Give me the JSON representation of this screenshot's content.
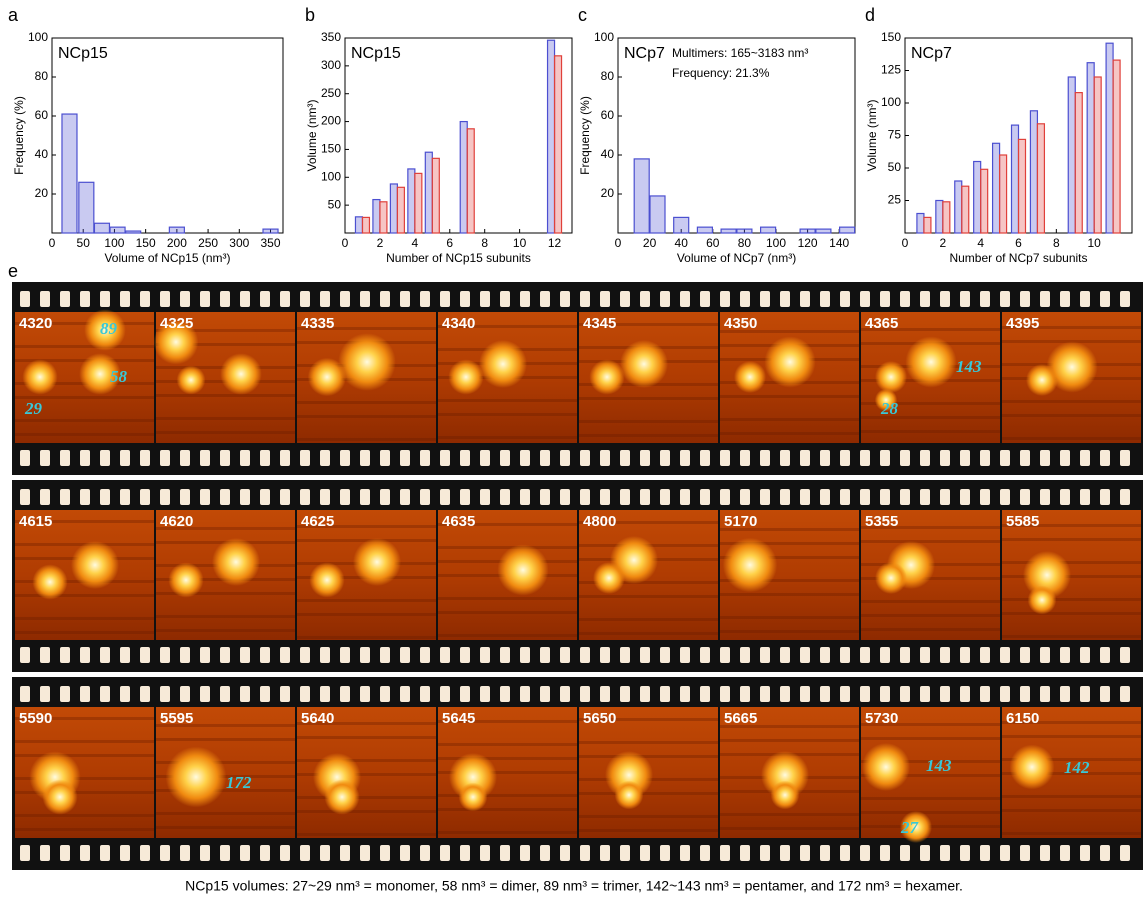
{
  "chart_data": [
    {
      "type": "bar",
      "panel": "a",
      "title": "NCp15",
      "x_label": "Volume of NCp15 (nm³)",
      "y_label": "Frequency (%)",
      "x": [
        28,
        55,
        80,
        105,
        130,
        200,
        350
      ],
      "values": [
        61,
        26,
        5,
        3,
        1,
        3,
        2
      ],
      "color": "#4b4fd0",
      "xlim": [
        0,
        370
      ],
      "xticks": [
        0,
        50,
        100,
        150,
        200,
        250,
        300,
        350
      ],
      "ylim": [
        0,
        100
      ],
      "yticks": [
        20,
        40,
        60,
        80,
        100
      ]
    },
    {
      "type": "grouped_bar",
      "panel": "b",
      "title": "NCp15",
      "x_label": "Number of NCp15 subunits",
      "y_label": "Volume (nm³)",
      "x": [
        1,
        2,
        3,
        4,
        5,
        7,
        12
      ],
      "series": [
        {
          "color": "#4b4fd0",
          "values": [
            29,
            60,
            88,
            115,
            145,
            200,
            346
          ]
        },
        {
          "color": "#e0403a",
          "values": [
            28,
            56,
            82,
            107,
            134,
            187,
            318
          ]
        }
      ],
      "xlim": [
        0,
        13
      ],
      "xticks": [
        0,
        2,
        4,
        6,
        8,
        10,
        12
      ],
      "ylim": [
        0,
        350
      ],
      "yticks": [
        50,
        100,
        150,
        200,
        250,
        300,
        350
      ]
    },
    {
      "type": "bar",
      "panel": "c",
      "title": "NCp7",
      "x_label": "Volume of NCp7 (nm³)",
      "y_label": "Frequency (%)",
      "annotations": [
        "Multimers: 165~3183 nm³",
        "Frequency: 21.3%"
      ],
      "x": [
        15,
        25,
        40,
        55,
        70,
        80,
        95,
        120,
        130,
        145
      ],
      "values": [
        38,
        19,
        8,
        3,
        2,
        2,
        3,
        2,
        2,
        3
      ],
      "color": "#4b4fd0",
      "xlim": [
        0,
        150
      ],
      "xticks": [
        0,
        20,
        40,
        60,
        80,
        100,
        120,
        140
      ],
      "ylim": [
        0,
        100
      ],
      "yticks": [
        20,
        40,
        60,
        80,
        100
      ]
    },
    {
      "type": "grouped_bar",
      "panel": "d",
      "title": "NCp7",
      "x_label": "Number of NCp7 subunits",
      "y_label": "Volume (nm³)",
      "x": [
        1,
        2,
        3,
        4,
        5,
        6,
        7,
        9,
        10,
        11
      ],
      "series": [
        {
          "color": "#4b4fd0",
          "values": [
            15,
            25,
            40,
            55,
            69,
            83,
            94,
            120,
            131,
            146
          ]
        },
        {
          "color": "#e0403a",
          "values": [
            12,
            24,
            36,
            49,
            60,
            72,
            84,
            108,
            120,
            133
          ]
        }
      ],
      "xlim": [
        0,
        12
      ],
      "xticks": [
        0,
        2,
        4,
        6,
        8,
        10
      ],
      "ylim": [
        0,
        150
      ],
      "yticks": [
        25,
        50,
        75,
        100,
        125,
        150
      ]
    }
  ],
  "panel_e": {
    "label": "e",
    "strips": [
      [
        {
          "label": "4320",
          "annotations": [
            "89",
            "58",
            "29"
          ]
        },
        {
          "label": "4325",
          "annotations": []
        },
        {
          "label": "4335",
          "annotations": []
        },
        {
          "label": "4340",
          "annotations": []
        },
        {
          "label": "4345",
          "annotations": []
        },
        {
          "label": "4350",
          "annotations": []
        },
        {
          "label": "4365",
          "annotations": [
            "143",
            "28"
          ]
        },
        {
          "label": "4395",
          "annotations": []
        }
      ],
      [
        {
          "label": "4615",
          "annotations": []
        },
        {
          "label": "4620",
          "annotations": []
        },
        {
          "label": "4625",
          "annotations": []
        },
        {
          "label": "4635",
          "annotations": []
        },
        {
          "label": "4800",
          "annotations": []
        },
        {
          "label": "5170",
          "annotations": []
        },
        {
          "label": "5355",
          "annotations": []
        },
        {
          "label": "5585",
          "annotations": []
        }
      ],
      [
        {
          "label": "5590",
          "annotations": []
        },
        {
          "label": "5595",
          "annotations": [
            "172"
          ]
        },
        {
          "label": "5640",
          "annotations": []
        },
        {
          "label": "5645",
          "annotations": []
        },
        {
          "label": "5650",
          "annotations": []
        },
        {
          "label": "5665",
          "annotations": []
        },
        {
          "label": "5730",
          "annotations": [
            "143",
            "27"
          ]
        },
        {
          "label": "6150",
          "annotations": [
            "142"
          ]
        }
      ]
    ]
  },
  "caption": "NCp15 volumes: 27~29 nm³ = monomer, 58 nm³ = dimer, 89 nm³ = trimer, 142~143 nm³ = pentamer, and 172 nm³ = hexamer."
}
